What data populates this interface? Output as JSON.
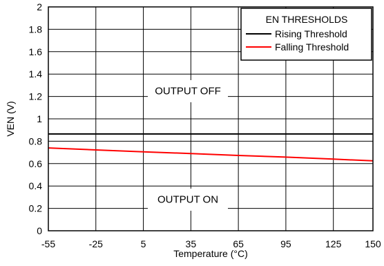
{
  "chart_data": {
    "type": "line",
    "xlabel": "Temperature (°C)",
    "ylabel": "VEN (V)",
    "xlim": [
      -55,
      150
    ],
    "ylim": [
      0,
      2
    ],
    "x_ticks": [
      "-55",
      "-25",
      "5",
      "35",
      "65",
      "95",
      "125",
      "150"
    ],
    "y_ticks": [
      "0",
      "0.2",
      "0.4",
      "0.6",
      "0.8",
      "1",
      "1.2",
      "1.4",
      "1.6",
      "1.8",
      "2"
    ],
    "grid": true,
    "legend": {
      "title": "EN THRESHOLDS",
      "placement": "top-right"
    },
    "annotations": [
      "OUTPUT OFF",
      "OUTPUT ON"
    ],
    "series": [
      {
        "name": "Rising Threshold",
        "color": "#000000",
        "x": [
          -55,
          -25,
          5,
          35,
          65,
          95,
          125,
          150
        ],
        "y": [
          0.865,
          0.865,
          0.865,
          0.865,
          0.865,
          0.865,
          0.865,
          0.865
        ]
      },
      {
        "name": "Falling Threshold",
        "color": "#ff0000",
        "x": [
          -55,
          -25,
          5,
          35,
          65,
          95,
          125,
          150
        ],
        "y": [
          0.74,
          0.722,
          0.705,
          0.69,
          0.673,
          0.658,
          0.64,
          0.625
        ]
      }
    ]
  }
}
